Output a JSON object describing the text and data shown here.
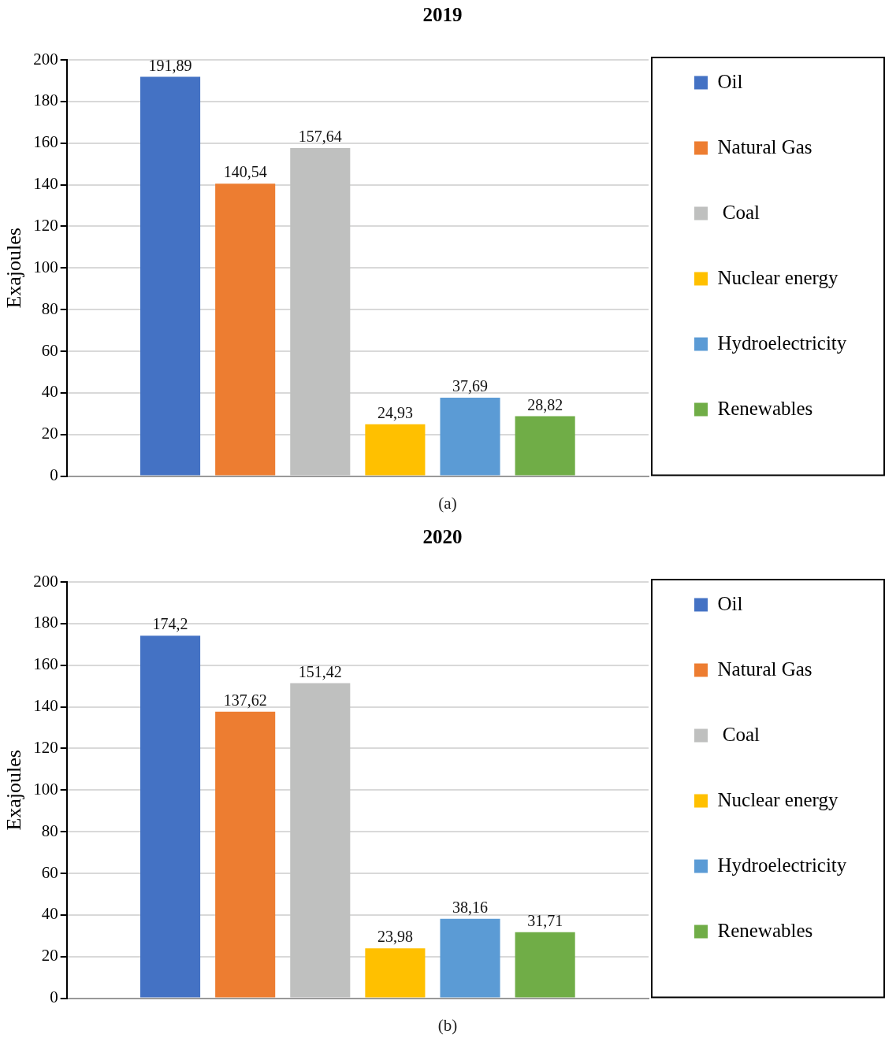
{
  "chart_data": [
    {
      "type": "bar",
      "title": "2019",
      "ylabel": "Exajoules",
      "categories": [
        null
      ],
      "series": [
        {
          "name": "Oil",
          "color": "#4472c4",
          "values": [
            191.89
          ],
          "value_labels": [
            "191,89"
          ]
        },
        {
          "name": "Natural Gas",
          "color": "#ed7d31",
          "values": [
            140.54
          ],
          "value_labels": [
            "140,54"
          ]
        },
        {
          "name": " Coal",
          "color": "#bfc0bf",
          "values": [
            157.64
          ],
          "value_labels": [
            "157,64"
          ]
        },
        {
          "name": "Nuclear energy",
          "color": "#ffc000",
          "values": [
            24.93
          ],
          "value_labels": [
            "24,93"
          ]
        },
        {
          "name": "Hydroelectricity",
          "color": "#5b9bd5",
          "values": [
            37.69
          ],
          "value_labels": [
            "37,69"
          ]
        },
        {
          "name": "Renewables",
          "color": "#70ad47",
          "values": [
            28.82
          ],
          "value_labels": [
            "28,82"
          ]
        }
      ],
      "ylim": [
        0,
        200
      ],
      "yticks": [
        0,
        20,
        40,
        60,
        80,
        100,
        120,
        140,
        160,
        180,
        200
      ],
      "grid": "y",
      "legend": "right",
      "annotations": [
        "(a)"
      ]
    },
    {
      "type": "bar",
      "title": "2020",
      "ylabel": "Exajoules",
      "categories": [
        null
      ],
      "series": [
        {
          "name": "Oil",
          "color": "#4472c4",
          "values": [
            174.2
          ],
          "value_labels": [
            "174,2"
          ]
        },
        {
          "name": "Natural Gas",
          "color": "#ed7d31",
          "values": [
            137.62
          ],
          "value_labels": [
            "137,62"
          ]
        },
        {
          "name": " Coal",
          "color": "#bfc0bf",
          "values": [
            151.42
          ],
          "value_labels": [
            "151,42"
          ]
        },
        {
          "name": "Nuclear energy",
          "color": "#ffc000",
          "values": [
            23.98
          ],
          "value_labels": [
            "23,98"
          ]
        },
        {
          "name": "Hydroelectricity",
          "color": "#5b9bd5",
          "values": [
            38.16
          ],
          "value_labels": [
            "38,16"
          ]
        },
        {
          "name": "Renewables",
          "color": "#70ad47",
          "values": [
            31.71
          ],
          "value_labels": [
            "31,71"
          ]
        }
      ],
      "ylim": [
        0,
        200
      ],
      "yticks": [
        0,
        20,
        40,
        60,
        80,
        100,
        120,
        140,
        160,
        180,
        200
      ],
      "grid": "y",
      "legend": "right",
      "annotations": [
        "(b)"
      ]
    }
  ]
}
